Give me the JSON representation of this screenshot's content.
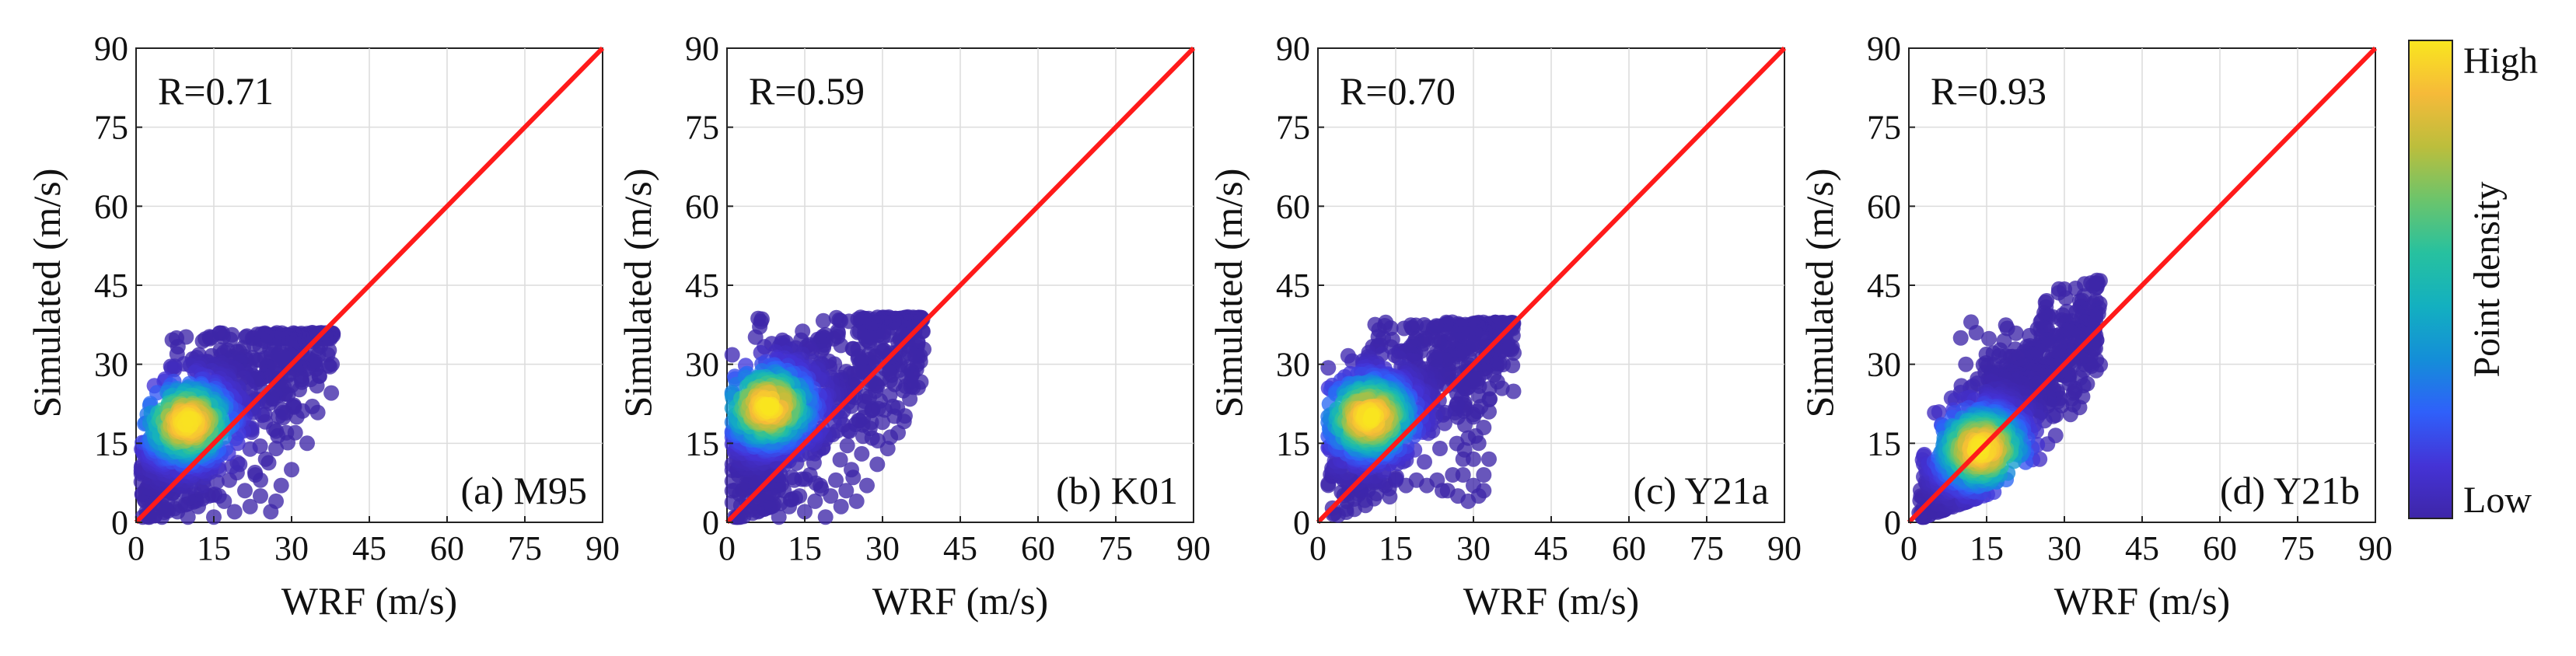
{
  "chart_data": [
    {
      "type": "scatter",
      "panel_label": "(a) M95",
      "r_text": "R=0.71",
      "xlabel": "WRF (m/s)",
      "ylabel": "Simulated (m/s)",
      "xlim": [
        0,
        90
      ],
      "ylim": [
        0,
        90
      ],
      "xticks": [
        "0",
        "15",
        "30",
        "45",
        "60",
        "75",
        "90"
      ],
      "yticks": [
        "0",
        "15",
        "30",
        "45",
        "60",
        "75",
        "90"
      ],
      "grid": true,
      "reference_line": {
        "x": [
          0,
          90
        ],
        "y": [
          0,
          90
        ],
        "color": "#ff1a1a"
      },
      "density_peak": {
        "x": 10,
        "y": 19
      },
      "cloud": {
        "x_min": 1,
        "x_max": 38,
        "y_cap": 36,
        "center_slope": 0.75,
        "center_offset": 10,
        "spread": 7,
        "n": 900
      },
      "outliers": [
        [
          2,
          2
        ],
        [
          3,
          5
        ],
        [
          5,
          1
        ],
        [
          6,
          4
        ],
        [
          7,
          8
        ],
        [
          8,
          2
        ],
        [
          9,
          6
        ],
        [
          10,
          1
        ],
        [
          11,
          9
        ],
        [
          12,
          3
        ],
        [
          13,
          7
        ],
        [
          14,
          5
        ],
        [
          15,
          1
        ],
        [
          16,
          10
        ],
        [
          17,
          4
        ],
        [
          18,
          8
        ],
        [
          19,
          2
        ],
        [
          20,
          11
        ],
        [
          21,
          6
        ],
        [
          22,
          3
        ],
        [
          23,
          9
        ],
        [
          24,
          5
        ],
        [
          25,
          12
        ],
        [
          26,
          2
        ],
        [
          27,
          14
        ],
        [
          28,
          7
        ],
        [
          29,
          17
        ],
        [
          30,
          10
        ],
        [
          31,
          20
        ],
        [
          33,
          15
        ],
        [
          34,
          22
        ],
        [
          5,
          10
        ],
        [
          9,
          12
        ],
        [
          16,
          5
        ],
        [
          24,
          8
        ],
        [
          27,
          4
        ]
      ]
    },
    {
      "type": "scatter",
      "panel_label": "(b) K01",
      "r_text": "R=0.59",
      "xlabel": "WRF (m/s)",
      "ylabel": "Simulated (m/s)",
      "xlim": [
        0,
        90
      ],
      "ylim": [
        0,
        90
      ],
      "xticks": [
        "0",
        "15",
        "30",
        "45",
        "60",
        "75",
        "90"
      ],
      "yticks": [
        "0",
        "15",
        "30",
        "45",
        "60",
        "75",
        "90"
      ],
      "grid": true,
      "reference_line": {
        "x": [
          0,
          90
        ],
        "y": [
          0,
          90
        ],
        "color": "#ff1a1a"
      },
      "density_peak": {
        "x": 8,
        "y": 22
      },
      "cloud": {
        "x_min": 1,
        "x_max": 38,
        "y_cap": 39,
        "center_slope": 0.7,
        "center_offset": 13,
        "spread": 8,
        "n": 900
      },
      "outliers": [
        [
          2,
          1
        ],
        [
          3,
          6
        ],
        [
          4,
          3
        ],
        [
          5,
          9
        ],
        [
          6,
          2
        ],
        [
          7,
          7
        ],
        [
          8,
          4
        ],
        [
          9,
          10
        ],
        [
          10,
          1
        ],
        [
          11,
          6
        ],
        [
          12,
          3
        ],
        [
          13,
          8
        ],
        [
          14,
          5
        ],
        [
          15,
          2
        ],
        [
          16,
          9
        ],
        [
          17,
          4
        ],
        [
          18,
          7
        ],
        [
          19,
          1
        ],
        [
          20,
          5
        ],
        [
          21,
          8
        ],
        [
          22,
          3
        ],
        [
          23,
          6
        ],
        [
          24,
          10
        ],
        [
          25,
          4
        ],
        [
          26,
          13
        ],
        [
          27,
          7
        ],
        [
          28,
          16
        ],
        [
          29,
          11
        ],
        [
          30,
          19
        ],
        [
          31,
          14
        ],
        [
          32,
          22
        ],
        [
          33,
          17
        ],
        [
          34,
          25
        ],
        [
          2,
          10
        ],
        [
          4,
          12
        ]
      ]
    },
    {
      "type": "scatter",
      "panel_label": "(c) Y21a",
      "r_text": "R=0.70",
      "xlabel": "WRF (m/s)",
      "ylabel": "Simulated (m/s)",
      "xlim": [
        0,
        90
      ],
      "ylim": [
        0,
        90
      ],
      "xticks": [
        "0",
        "15",
        "30",
        "45",
        "60",
        "75",
        "90"
      ],
      "yticks": [
        "0",
        "15",
        "30",
        "45",
        "60",
        "75",
        "90"
      ],
      "grid": true,
      "reference_line": {
        "x": [
          0,
          90
        ],
        "y": [
          0,
          90
        ],
        "color": "#ff1a1a"
      },
      "density_peak": {
        "x": 10,
        "y": 20
      },
      "cloud": {
        "x_min": 2,
        "x_max": 38,
        "y_cap": 38,
        "center_slope": 0.7,
        "center_offset": 12,
        "spread": 7,
        "n": 900
      },
      "outliers": [
        [
          3,
          9
        ],
        [
          5,
          8
        ],
        [
          7,
          8
        ],
        [
          9,
          7
        ],
        [
          11,
          8
        ],
        [
          13,
          7
        ],
        [
          15,
          8
        ],
        [
          17,
          7
        ],
        [
          19,
          8
        ],
        [
          21,
          7
        ],
        [
          23,
          8
        ],
        [
          25,
          6
        ],
        [
          27,
          5
        ],
        [
          28,
          9
        ],
        [
          29,
          4
        ],
        [
          30,
          7
        ],
        [
          31,
          5
        ],
        [
          32,
          9
        ],
        [
          30,
          12
        ],
        [
          31,
          15
        ],
        [
          32,
          18
        ],
        [
          33,
          21
        ],
        [
          29,
          16
        ],
        [
          30,
          20
        ],
        [
          31,
          24
        ],
        [
          28,
          12
        ],
        [
          33,
          12
        ],
        [
          32,
          6
        ],
        [
          26,
          9
        ],
        [
          24,
          6
        ]
      ]
    },
    {
      "type": "scatter",
      "panel_label": "(d) Y21b",
      "r_text": "R=0.93",
      "xlabel": "WRF (m/s)",
      "ylabel": "Simulated (m/s)",
      "xlim": [
        0,
        90
      ],
      "ylim": [
        0,
        90
      ],
      "xticks": [
        "0",
        "15",
        "30",
        "45",
        "60",
        "75",
        "90"
      ],
      "yticks": [
        "0",
        "15",
        "30",
        "45",
        "60",
        "75",
        "90"
      ],
      "grid": true,
      "reference_line": {
        "x": [
          0,
          90
        ],
        "y": [
          0,
          90
        ],
        "color": "#ff1a1a"
      },
      "density_peak": {
        "x": 14,
        "y": 14
      },
      "cloud": {
        "x_min": 2,
        "x_max": 37,
        "y_cap": 46,
        "center_slope": 1.0,
        "center_offset": 2,
        "spread": 6,
        "n": 1000
      },
      "outliers": [
        [
          3,
          1
        ],
        [
          4,
          3
        ],
        [
          5,
          2
        ],
        [
          6,
          5
        ],
        [
          8,
          3
        ],
        [
          10,
          6
        ],
        [
          35,
          30
        ],
        [
          36,
          33
        ],
        [
          35,
          35
        ],
        [
          34,
          38
        ],
        [
          36,
          40
        ],
        [
          33,
          42
        ],
        [
          10,
          35
        ],
        [
          12,
          38
        ],
        [
          11,
          30
        ],
        [
          13,
          36
        ]
      ]
    }
  ],
  "colorbar": {
    "high_label": "High",
    "low_label": "Low",
    "title": "Point density",
    "colormap": [
      "#3e26a8",
      "#4433d6",
      "#2f60fa",
      "#148ed8",
      "#13b0c0",
      "#27c19f",
      "#6cc46b",
      "#bcbe3c",
      "#f6ba39",
      "#f9e61f"
    ]
  },
  "colors": {
    "reference_line": "#ff1a1a",
    "low_density": "#3e26a8",
    "high_density": "#f9e61f",
    "grid": "#dcdcdc",
    "axis": "#222222"
  }
}
